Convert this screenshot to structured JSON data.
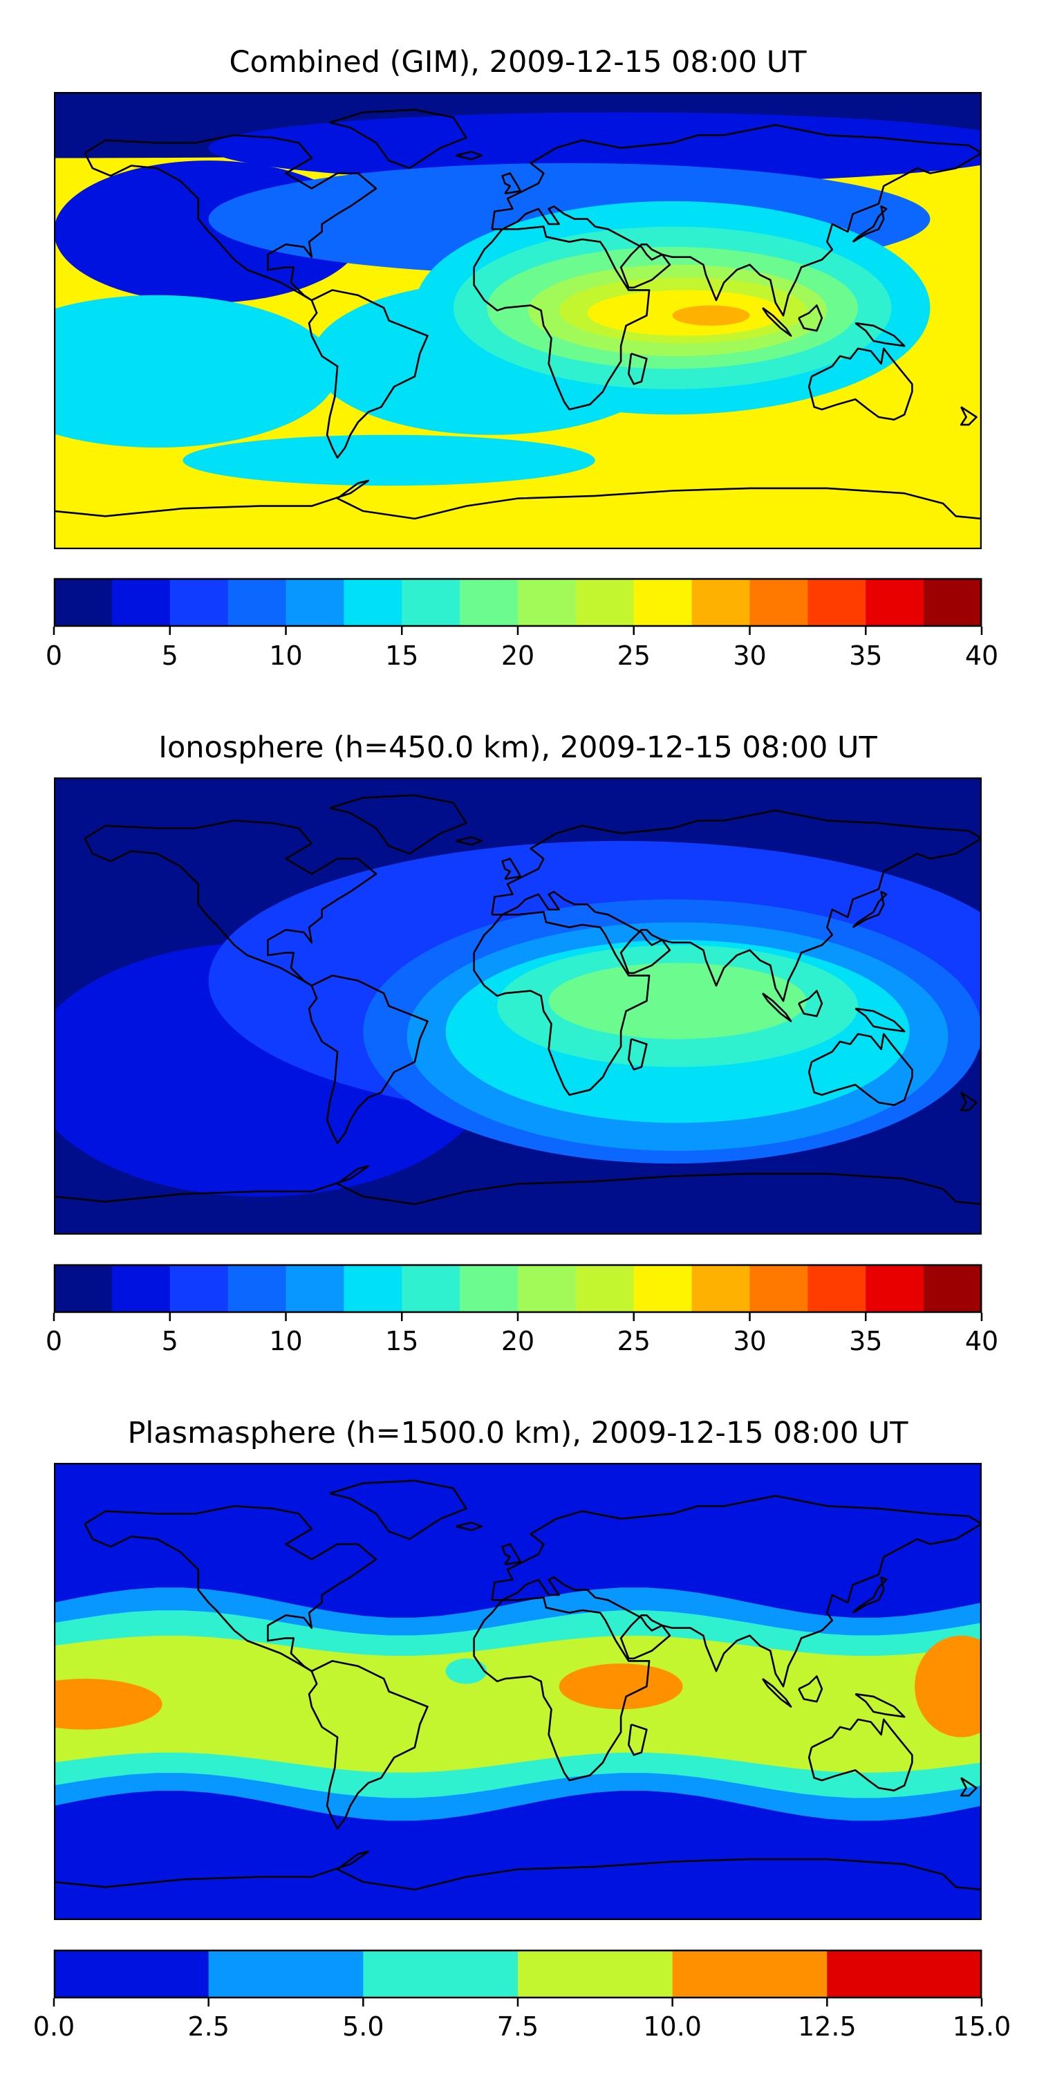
{
  "chart_data": [
    {
      "type": "heatmap",
      "title": "Combined (GIM), 2009-12-15 08:00 UT",
      "colorbar": {
        "levels": [
          0,
          2.5,
          5,
          7.5,
          10,
          12.5,
          15,
          17.5,
          20,
          22.5,
          25,
          27.5,
          30,
          32.5,
          35,
          37.5,
          40
        ],
        "colors": [
          "#000e8c",
          "#0012e0",
          "#0f3cff",
          "#0b67ff",
          "#0896ff",
          "#00e1f8",
          "#2ff1cf",
          "#6cfb8f",
          "#a2fa58",
          "#c4f62f",
          "#fff400",
          "#ffb100",
          "#ff7800",
          "#ff3d00",
          "#e80000",
          "#9c0000"
        ],
        "ticks": [
          0,
          5,
          10,
          15,
          20,
          25,
          30,
          35,
          40
        ],
        "tick_labels": [
          "0",
          "5",
          "10",
          "15",
          "20",
          "25",
          "30",
          "35",
          "40"
        ]
      },
      "background_level": 10,
      "features": [
        {
          "type": "blob",
          "lon": -180,
          "lat": 82,
          "rlon": 400,
          "rlat": 18,
          "level": 0
        },
        {
          "type": "blob",
          "lon": 40,
          "lat": 68,
          "rlon": 160,
          "rlat": 14,
          "level": 1
        },
        {
          "type": "blob",
          "lon": -120,
          "lat": 35,
          "rlon": 60,
          "rlat": 28,
          "level": 1
        },
        {
          "type": "blob",
          "lon": 20,
          "lat": 40,
          "rlon": 140,
          "rlat": 22,
          "level": 3
        },
        {
          "type": "blob",
          "lon": -140,
          "lat": -20,
          "rlon": 70,
          "rlat": 30,
          "level": 5
        },
        {
          "type": "blob",
          "lon": -10,
          "lat": -15,
          "rlon": 70,
          "rlat": 30,
          "level": 5
        },
        {
          "type": "blob",
          "lon": 60,
          "lat": 5,
          "rlon": 100,
          "rlat": 42,
          "level": 5
        },
        {
          "type": "blob",
          "lon": -50,
          "lat": -55,
          "rlon": 80,
          "rlat": 10,
          "level": 5
        },
        {
          "type": "blob",
          "lon": 60,
          "lat": 5,
          "rlon": 85,
          "rlat": 32,
          "level": 6
        },
        {
          "type": "blob",
          "lon": 60,
          "lat": 5,
          "rlon": 72,
          "rlat": 24,
          "level": 7
        },
        {
          "type": "blob",
          "lon": 62,
          "lat": 4,
          "rlon": 58,
          "rlat": 18,
          "level": 8
        },
        {
          "type": "blob",
          "lon": 64,
          "lat": 4,
          "rlon": 48,
          "rlat": 13,
          "level": 9
        },
        {
          "type": "blob",
          "lon": 65,
          "lat": 3,
          "rlon": 38,
          "rlat": 9,
          "level": 10
        },
        {
          "type": "blob",
          "lon": 75,
          "lat": 2,
          "rlon": 15,
          "rlat": 4,
          "level": 11
        }
      ]
    },
    {
      "type": "heatmap",
      "title": "Ionosphere  (h=450.0 km), 2009-12-15 08:00 UT",
      "colorbar": {
        "levels": [
          0,
          2.5,
          5,
          7.5,
          10,
          12.5,
          15,
          17.5,
          20,
          22.5,
          25,
          27.5,
          30,
          32.5,
          35,
          37.5,
          40
        ],
        "colors": [
          "#000e8c",
          "#0012e0",
          "#0f3cff",
          "#0b67ff",
          "#0896ff",
          "#00e1f8",
          "#2ff1cf",
          "#6cfb8f",
          "#a2fa58",
          "#c4f62f",
          "#fff400",
          "#ffb100",
          "#ff7800",
          "#ff3d00",
          "#e80000",
          "#9c0000"
        ],
        "ticks": [
          0,
          5,
          10,
          15,
          20,
          25,
          30,
          35,
          40
        ],
        "tick_labels": [
          "0",
          "5",
          "10",
          "15",
          "20",
          "25",
          "30",
          "35",
          "40"
        ]
      },
      "background_level": 0,
      "features": [
        {
          "type": "blob",
          "lon": -100,
          "lat": -25,
          "rlon": 90,
          "rlat": 50,
          "level": 1
        },
        {
          "type": "blob",
          "lon": 40,
          "lat": 10,
          "rlon": 160,
          "rlat": 55,
          "level": 2
        },
        {
          "type": "blob",
          "lon": 60,
          "lat": -10,
          "rlon": 120,
          "rlat": 52,
          "level": 3
        },
        {
          "type": "blob",
          "lon": 62,
          "lat": -12,
          "rlon": 105,
          "rlat": 45,
          "level": 4
        },
        {
          "type": "blob",
          "lon": 62,
          "lat": -10,
          "rlon": 90,
          "rlat": 36,
          "level": 5
        },
        {
          "type": "blob",
          "lon": 62,
          "lat": 0,
          "rlon": 70,
          "rlat": 24,
          "level": 6
        },
        {
          "type": "blob",
          "lon": 62,
          "lat": 2,
          "rlon": 50,
          "rlat": 15,
          "level": 7
        }
      ]
    },
    {
      "type": "heatmap",
      "title": "Plasmasphere (h=1500.0 km), 2009-12-15 08:00 UT",
      "colorbar": {
        "levels": [
          0,
          2.5,
          5,
          7.5,
          10,
          12.5,
          15
        ],
        "colors": [
          "#0012e0",
          "#0896ff",
          "#2ff1cf",
          "#c4f62f",
          "#ff9000",
          "#e00000"
        ],
        "ticks": [
          0,
          2.5,
          5,
          7.5,
          10,
          12.5,
          15
        ],
        "tick_labels": [
          "0.0",
          "2.5",
          "5.0",
          "7.5",
          "10.0",
          "12.5",
          "15.0"
        ]
      },
      "background_level": 0,
      "features": [
        {
          "type": "band",
          "lat": -5,
          "half_width": 40,
          "level": 1,
          "amp": 6
        },
        {
          "type": "band",
          "lat": -5,
          "half_width": 32,
          "level": 2,
          "amp": 5
        },
        {
          "type": "band",
          "lat": -5,
          "half_width": 23,
          "level": 3,
          "amp": 4
        },
        {
          "type": "blob",
          "lon": -168,
          "lat": -5,
          "rlon": 30,
          "rlat": 10,
          "level": 4
        },
        {
          "type": "blob",
          "lon": 40,
          "lat": 2,
          "rlon": 24,
          "rlat": 9,
          "level": 4
        },
        {
          "type": "blob",
          "lon": 172,
          "lat": 2,
          "rlon": 18,
          "rlat": 20,
          "level": 4
        },
        {
          "type": "blob",
          "lon": -20,
          "lat": 8,
          "rlon": 8,
          "rlat": 5,
          "level": 2
        }
      ]
    }
  ]
}
